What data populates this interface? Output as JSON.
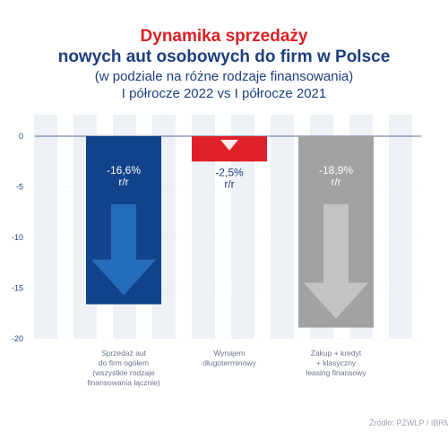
{
  "header": {
    "title_line1": "Dynamika sprzedaży",
    "title_line2": "nowych aut osobowych do firm w Polsce",
    "subtitle_line1": "(w podziale na różne rodzaje finansowania)",
    "subtitle_line2": "I półrocze 2022 vs I półrocze 2021"
  },
  "source": "Źródło: PZWLP / IBRM",
  "colors": {
    "title_red": "#dc1f26",
    "title_blue": "#1d3f7e",
    "bar_blue": "#12438a",
    "bar_red": "#e02028",
    "bar_gray": "#a2a2a2",
    "band": "#eef2f7",
    "axis": "#1d3f7e"
  },
  "chart_data": {
    "type": "bar",
    "categories": [
      [
        "Sprzedaż aut",
        "do firm ogółem",
        "(wszystkie rodzaje",
        "finansowania łącznie)"
      ],
      [
        "Wynajem",
        "długoterminowy"
      ],
      [
        "Zakup + kredyt",
        "+ klasyczny",
        "leasing finansowy"
      ]
    ],
    "values": [
      -16.6,
      -2.5,
      -18.9
    ],
    "data_labels": [
      [
        "-16,6%",
        "r/r"
      ],
      [
        "-2,5%",
        "r/r"
      ],
      [
        "-18,9%",
        "r/r"
      ]
    ],
    "bar_colors": [
      "#12438a",
      "#e02028",
      "#a2a2a2"
    ],
    "label_colors": [
      "#ffffff",
      "#1d3f7e",
      "#ffffff"
    ],
    "arrow_icons": [
      "down-arrow-icon",
      "down-arrow-icon",
      "down-arrow-icon"
    ],
    "yticks": [
      0,
      -5,
      -10,
      -15,
      -20
    ],
    "ylim": [
      -20,
      0
    ],
    "grid": "vertical bands"
  }
}
